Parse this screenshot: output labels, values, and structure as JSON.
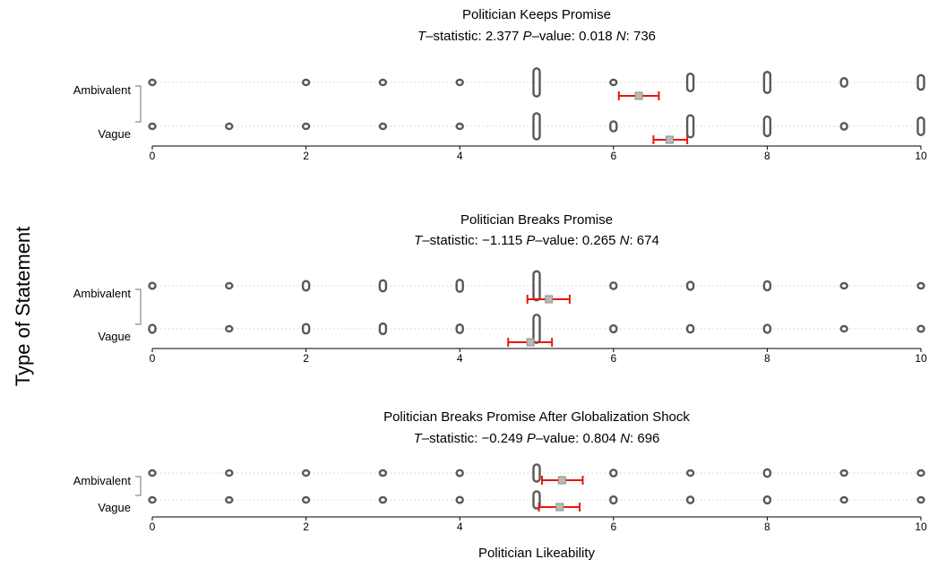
{
  "axis_title": "Politician Likeability",
  "y_axis_title": "Type of Statement",
  "colors": {
    "points": "#595959",
    "ci": "#e8160c",
    "mean_marker": "#b9b9b9",
    "grid": "#cfcfcf"
  },
  "chart_data": [
    {
      "type": "scatter",
      "title": "Politician Keeps Promise",
      "stats": {
        "t_label": "T",
        "t_rest": "–statistic: 2.377",
        "p_label": "P",
        "p_rest": "–value: 0.018",
        "n_label": "N",
        "n_rest": ": 736"
      },
      "xlim": [
        0,
        10
      ],
      "x_ticks": [
        "0",
        "2",
        "4",
        "6",
        "8",
        "10"
      ],
      "categories": [
        "Ambivalent",
        "Vague"
      ],
      "series": [
        {
          "name": "Ambivalent",
          "counts": [
            6,
            0,
            5,
            8,
            6,
            56,
            8,
            35,
            42,
            17,
            29
          ],
          "mean": 6.33,
          "ci": [
            6.07,
            6.59
          ]
        },
        {
          "name": "Vague",
          "counts": [
            5,
            2,
            4,
            7,
            5,
            52,
            20,
            44,
            39,
            13,
            35
          ],
          "mean": 6.73,
          "ci": [
            6.52,
            6.96
          ]
        }
      ]
    },
    {
      "type": "scatter",
      "title": "Politician Breaks Promise",
      "stats": {
        "t_label": "T",
        "t_rest": "–statistic: −1.115",
        "p_label": "P",
        "p_rest": "–value: 0.265",
        "n_label": "N",
        "n_rest": ": 674"
      },
      "xlim": [
        0,
        10
      ],
      "x_ticks": [
        "0",
        "2",
        "4",
        "6",
        "8",
        "10"
      ],
      "categories": [
        "Ambivalent",
        "Vague"
      ],
      "series": [
        {
          "name": "Ambivalent",
          "counts": [
            12,
            6,
            19,
            22,
            24,
            58,
            13,
            16,
            18,
            9,
            11
          ],
          "mean": 5.16,
          "ci": [
            4.88,
            5.43
          ]
        },
        {
          "name": "Vague",
          "counts": [
            16,
            8,
            19,
            21,
            17,
            56,
            14,
            15,
            16,
            9,
            12
          ],
          "mean": 4.92,
          "ci": [
            4.63,
            5.2
          ]
        }
      ]
    },
    {
      "type": "scatter",
      "title": "Politician Breaks Promise After Globalization Shock",
      "stats": {
        "t_label": "T",
        "t_rest": "–statistic: −0.249",
        "p_label": "P",
        "p_rest": "–value: 0.804",
        "n_label": "N",
        "n_rest": ": 696"
      },
      "xlim": [
        0,
        10
      ],
      "x_ticks": [
        "0",
        "2",
        "4",
        "6",
        "8",
        "10"
      ],
      "categories": [
        "Ambivalent",
        "Vague"
      ],
      "series": [
        {
          "name": "Ambivalent",
          "counts": [
            5,
            4,
            5,
            11,
            12,
            34,
            13,
            9,
            15,
            4,
            5
          ],
          "mean": 5.33,
          "ci": [
            5.07,
            5.6
          ]
        },
        {
          "name": "Vague",
          "counts": [
            6,
            4,
            5,
            11,
            12,
            34,
            14,
            13,
            14,
            6,
            6
          ],
          "mean": 5.3,
          "ci": [
            5.03,
            5.56
          ]
        }
      ]
    }
  ]
}
